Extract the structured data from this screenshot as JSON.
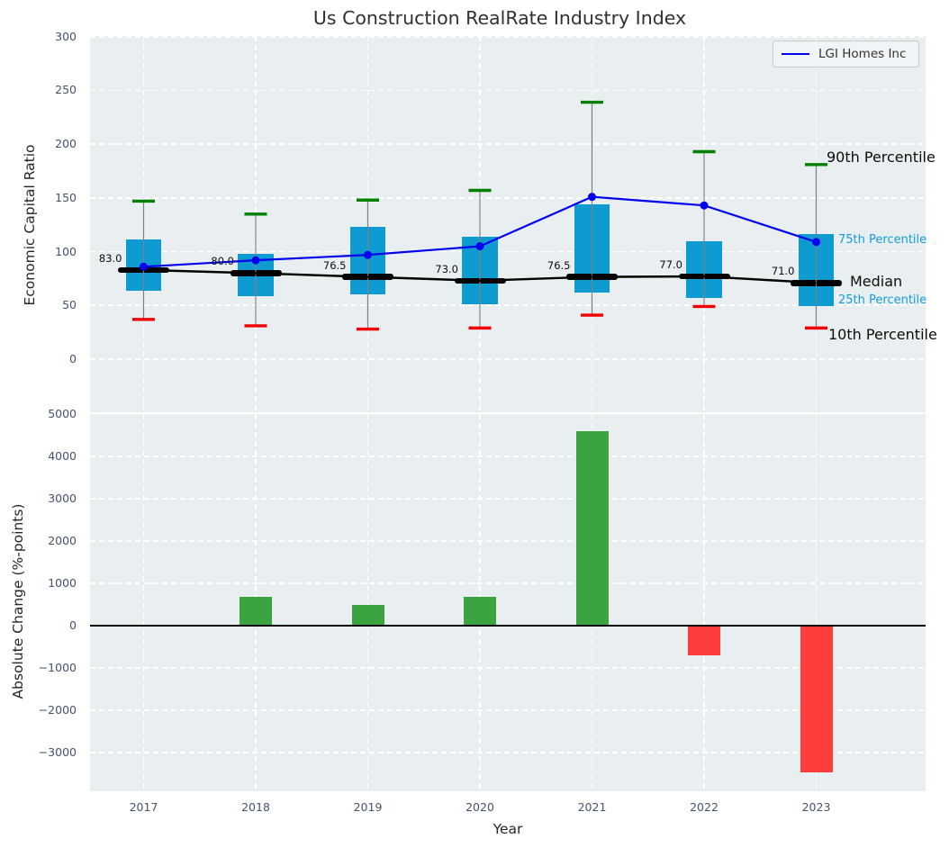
{
  "title": "Us Construction RealRate Industry Index",
  "legend": {
    "label": "LGI Homes Inc",
    "line_color": "#0000ee"
  },
  "colors": {
    "plot_bg": "#e9eef0",
    "box_fill": "#0d9bd2",
    "lgi_line": "#0000ee",
    "cap_90th": "#008000",
    "cap_10th": "#f00000",
    "whisker": "#808080",
    "median": "#000000",
    "bar_positive": "#3ba33f",
    "bar_negative": "#fd3c3c",
    "percentile_label_cyan": "#149cd8",
    "tick_label": "#44536b"
  },
  "chart_data": [
    {
      "type": "box-percentile-with-line",
      "title": "Us Construction RealRate Industry Index",
      "ylabel": "Economic Capital Ratio",
      "categories": [
        "2017",
        "2018",
        "2019",
        "2020",
        "2021",
        "2022",
        "2023"
      ],
      "yticks": [
        0,
        50,
        100,
        150,
        200,
        250,
        300
      ],
      "ytick_labels": [
        "0",
        "50",
        "100",
        "150",
        "200",
        "250",
        "300"
      ],
      "ylim": [
        -48,
        300
      ],
      "grid": true,
      "legend_position": "upper right",
      "series": [
        {
          "name": "90th Percentile",
          "values": [
            147,
            135,
            148,
            157,
            239,
            193,
            181
          ]
        },
        {
          "name": "75th Percentile",
          "values": [
            111,
            98,
            123,
            114,
            144,
            110,
            116
          ]
        },
        {
          "name": "Median",
          "values": [
            83.0,
            80.0,
            76.5,
            73.0,
            76.5,
            77.0,
            71.0
          ]
        },
        {
          "name": "25th Percentile",
          "values": [
            64,
            59,
            60,
            51,
            62,
            57,
            49
          ]
        },
        {
          "name": "10th Percentile",
          "values": [
            37,
            31,
            28,
            29,
            41,
            49,
            29
          ]
        },
        {
          "name": "LGI Homes Inc",
          "values": [
            86,
            92,
            97,
            105,
            151,
            143,
            109
          ]
        }
      ],
      "median_annotations": [
        "83.0",
        "80.0",
        "76.5",
        "73.0",
        "76.5",
        "77.0",
        "71.0"
      ],
      "right_labels": [
        {
          "text": "90th Percentile",
          "style": "big"
        },
        {
          "text": "75th Percentile",
          "style": "small"
        },
        {
          "text": "Median",
          "style": "big"
        },
        {
          "text": "25th Percentile",
          "style": "small"
        },
        {
          "text": "10th Percentile",
          "style": "big"
        }
      ]
    },
    {
      "type": "bar",
      "ylabel": "Absolute Change (%-points)",
      "xlabel": "Year",
      "categories": [
        "2017",
        "2018",
        "2019",
        "2020",
        "2021",
        "2022",
        "2023"
      ],
      "values": [
        0,
        690,
        480,
        690,
        4600,
        -700,
        -3470
      ],
      "yticks": [
        5000,
        4000,
        3000,
        2000,
        1000,
        0,
        -1000,
        -2000,
        -3000
      ],
      "ytick_labels": [
        "5000",
        "4000",
        "3000",
        "2000",
        "1000",
        "0",
        "−1000",
        "−2000",
        "−3000"
      ],
      "ylim": [
        -3900,
        5070
      ],
      "grid": true
    }
  ]
}
